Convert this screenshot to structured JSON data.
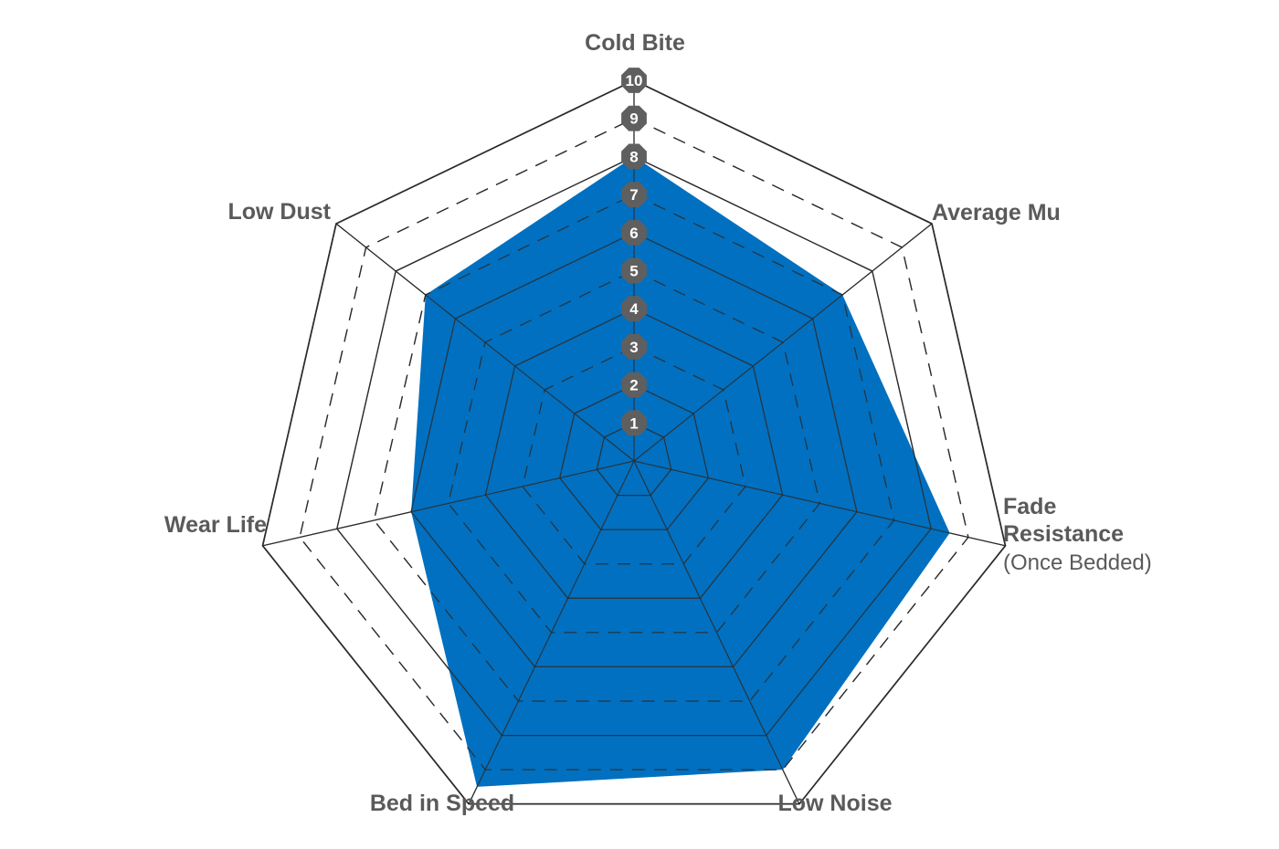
{
  "chart_data": {
    "type": "radar",
    "axes": [
      "Cold Bite",
      "Average Mu",
      "Fade Resistance (Once Bedded)",
      "Low Noise",
      "Bed in Speed",
      "Wear Life",
      "Low Dust"
    ],
    "range": [
      0,
      10
    ],
    "ticks": [
      "1",
      "2",
      "3",
      "4",
      "5",
      "6",
      "7",
      "8",
      "9",
      "10"
    ],
    "series": [
      {
        "values": [
          8,
          7,
          8.5,
          9,
          9.5,
          6,
          7
        ]
      }
    ],
    "grid": true,
    "colors": {
      "fill": "#0270c0",
      "grid": "#2b2b2b",
      "tick_badge": "#5f5f5f",
      "label_text": "#5a5a5a"
    }
  },
  "labels": {
    "cold_bite": "Cold Bite",
    "average_mu": "Average Mu",
    "fade_line1": "Fade",
    "fade_line2": "Resistance",
    "fade_line3": "(Once Bedded)",
    "low_noise": "Low Noise",
    "bed_in_speed": "Bed in Speed",
    "wear_life": "Wear Life",
    "low_dust": "Low Dust"
  }
}
